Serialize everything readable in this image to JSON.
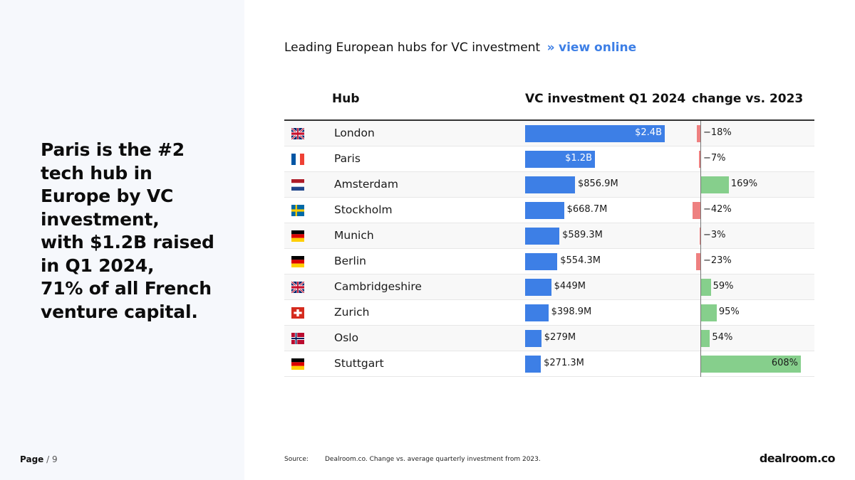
{
  "headline": [
    "Paris is the #2",
    "tech hub in",
    "Europe by VC",
    "investment,",
    "with $1.2B raised",
    "in Q1 2024,",
    "71% of all French",
    "venture capital."
  ],
  "page": {
    "label": "Page",
    "separator": " / ",
    "number": "9"
  },
  "chart_title": {
    "text": "Leading European hubs for VC investment",
    "chevron": "»",
    "link": "view online"
  },
  "source": {
    "label": "Source:",
    "text": "Dealroom.co. Change vs. average quarterly investment from 2023."
  },
  "brand": "dealroom.co",
  "colors": {
    "vc_bar": "#3d7fe6",
    "positive": "#86cf8c",
    "negative": "#ee8080",
    "link": "#3d7fe6"
  },
  "chart_data": {
    "type": "table",
    "columns": [
      "Hub",
      "VC investment Q1 2024",
      "change vs. 2023"
    ],
    "rows": [
      {
        "flag": "gb",
        "hub": "London",
        "vc_value": 2400,
        "vc_label": "$2.4B",
        "change": -18,
        "change_label": "−18%"
      },
      {
        "flag": "fr",
        "hub": "Paris",
        "vc_value": 1200,
        "vc_label": "$1.2B",
        "change": -7,
        "change_label": "−7%"
      },
      {
        "flag": "nl",
        "hub": "Amsterdam",
        "vc_value": 856.9,
        "vc_label": "$856.9M",
        "change": 169,
        "change_label": "169%"
      },
      {
        "flag": "se",
        "hub": "Stockholm",
        "vc_value": 668.7,
        "vc_label": "$668.7M",
        "change": -42,
        "change_label": "−42%"
      },
      {
        "flag": "de",
        "hub": "Munich",
        "vc_value": 589.3,
        "vc_label": "$589.3M",
        "change": -3,
        "change_label": "−3%"
      },
      {
        "flag": "de",
        "hub": "Berlin",
        "vc_value": 554.3,
        "vc_label": "$554.3M",
        "change": -23,
        "change_label": "−23%"
      },
      {
        "flag": "gb",
        "hub": "Cambridgeshire",
        "vc_value": 449,
        "vc_label": "$449M",
        "change": 59,
        "change_label": "59%"
      },
      {
        "flag": "ch",
        "hub": "Zurich",
        "vc_value": 398.9,
        "vc_label": "$398.9M",
        "change": 95,
        "change_label": "95%"
      },
      {
        "flag": "no",
        "hub": "Oslo",
        "vc_value": 279,
        "vc_label": "$279M",
        "change": 54,
        "change_label": "54%"
      },
      {
        "flag": "de",
        "hub": "Stuttgart",
        "vc_value": 271.3,
        "vc_label": "$271.3M",
        "change": 608,
        "change_label": "608%"
      }
    ]
  }
}
